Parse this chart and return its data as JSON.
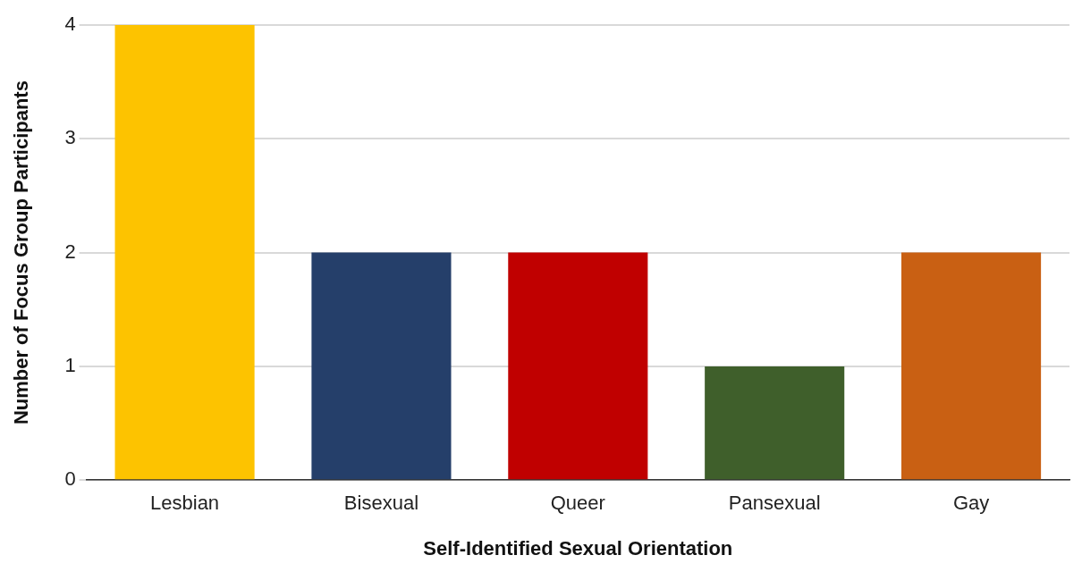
{
  "chart_data": {
    "type": "bar",
    "xlabel": "Self-Identified Sexual Orientation",
    "ylabel": "Number of Focus Group Participants",
    "categories": [
      "Lesbian",
      "Bisexual",
      "Queer",
      "Pansexual",
      "Gay"
    ],
    "values": [
      4,
      2,
      2,
      1,
      2
    ],
    "colors": [
      "#fdc300",
      "#253f6a",
      "#c00000",
      "#3f5f2b",
      "#c96013"
    ],
    "ylim": [
      0,
      4
    ],
    "yticks": [
      0,
      1,
      2,
      3,
      4
    ],
    "grid": "y",
    "legend": false
  }
}
